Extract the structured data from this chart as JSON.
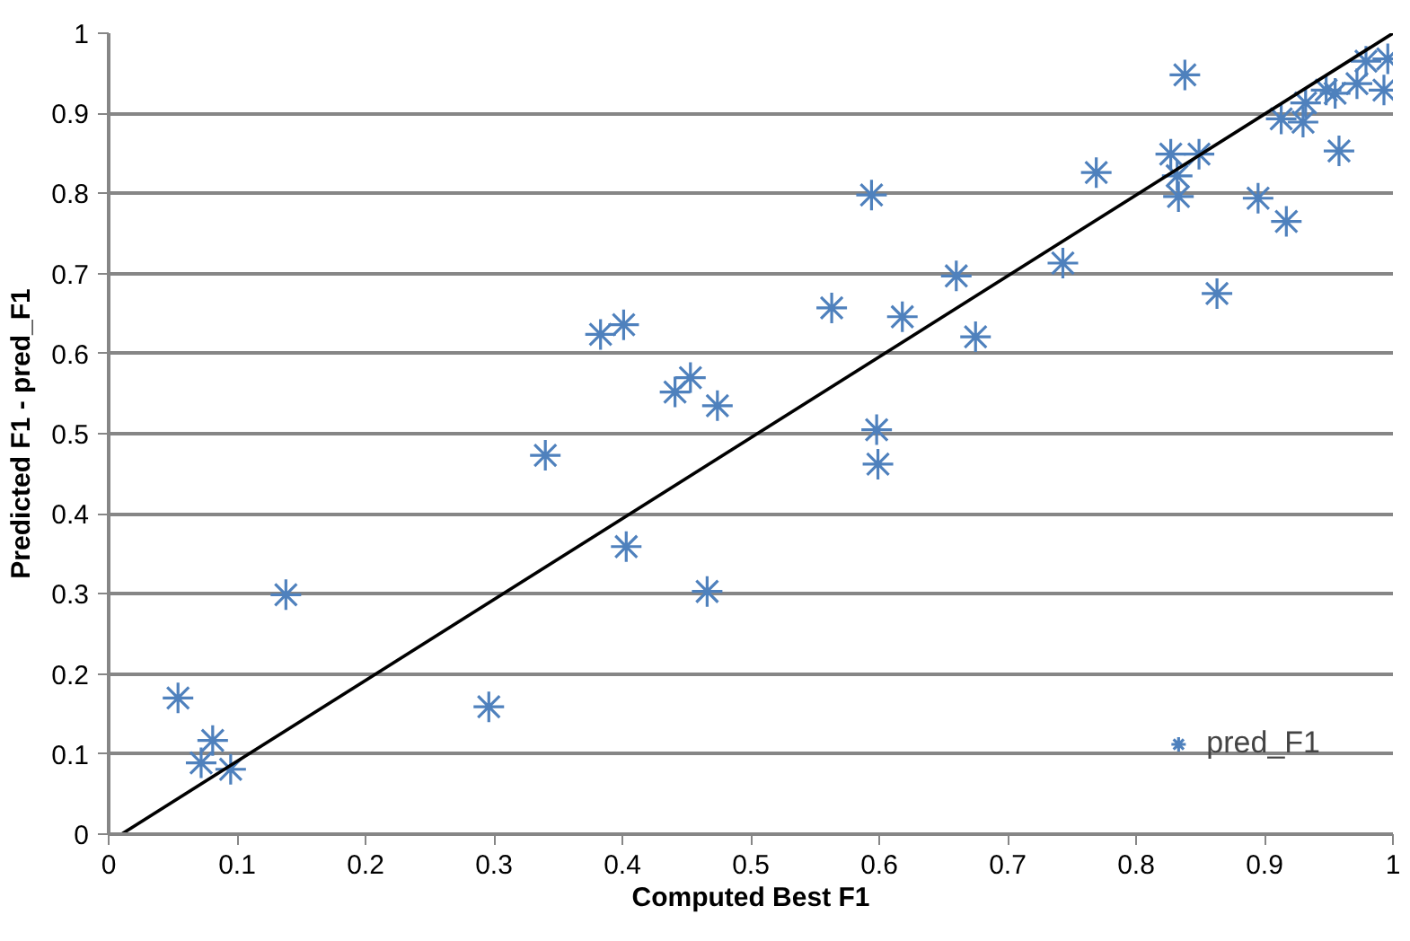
{
  "chart_data": {
    "type": "scatter",
    "xlabel": "Computed Best F1",
    "ylabel": "Predicted F1 - pred_F1",
    "xlim": [
      0,
      1
    ],
    "ylim": [
      0,
      1
    ],
    "xticks": [
      0,
      0.1,
      0.2,
      0.3,
      0.4,
      0.5,
      0.6,
      0.7,
      0.8,
      0.9,
      1
    ],
    "yticks": [
      0,
      0.1,
      0.2,
      0.3,
      0.4,
      0.5,
      0.6,
      0.7,
      0.8,
      0.9,
      1
    ],
    "grid": "y",
    "legend": "bottom right",
    "series": [
      {
        "name": "pred_F1",
        "color": "#4f81bd",
        "marker": "cross",
        "x": [
          0.054,
          0.081,
          0.072,
          0.095,
          0.138,
          0.296,
          0.34,
          0.383,
          0.401,
          0.403,
          0.441,
          0.453,
          0.474,
          0.466,
          0.563,
          0.594,
          0.598,
          0.599,
          0.618,
          0.66,
          0.675,
          0.743,
          0.769,
          0.827,
          0.833,
          0.832,
          0.838,
          0.849,
          0.863,
          0.895,
          0.913,
          0.917,
          0.93,
          0.932,
          0.948,
          0.955,
          0.958,
          0.972,
          0.979,
          0.993,
          0.996
        ],
        "values": [
          0.17,
          0.117,
          0.089,
          0.081,
          0.299,
          0.159,
          0.473,
          0.624,
          0.636,
          0.359,
          0.552,
          0.57,
          0.535,
          0.303,
          0.657,
          0.798,
          0.505,
          0.462,
          0.646,
          0.697,
          0.621,
          0.713,
          0.826,
          0.849,
          0.796,
          0.822,
          0.948,
          0.849,
          0.675,
          0.794,
          0.893,
          0.765,
          0.889,
          0.913,
          0.929,
          0.925,
          0.853,
          0.937,
          0.965,
          0.929,
          0.968
        ]
      },
      {
        "type": "line",
        "color": "#000000",
        "marker": "none",
        "x": [
          0.01,
          1
        ],
        "values": [
          0,
          1
        ]
      }
    ]
  }
}
